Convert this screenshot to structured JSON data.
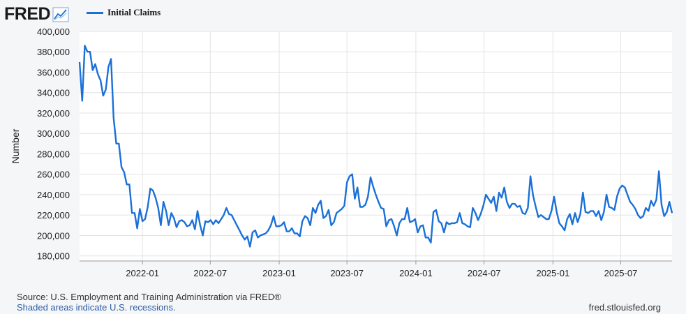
{
  "header": {
    "logo_text": "FRED",
    "logo_icon": "fred-trend-icon"
  },
  "legend": {
    "series_label": "Initial Claims",
    "color": "#1a70d8"
  },
  "footer": {
    "source": "Source: U.S. Employment and Training Administration via FRED®",
    "recession_note": "Shaded areas indicate U.S. recessions.",
    "site": "fred.stlouisfed.org"
  },
  "chart_data": {
    "type": "line",
    "ylabel": "Number",
    "ylim": [
      175000,
      400000
    ],
    "yticks": [
      180000,
      200000,
      220000,
      240000,
      260000,
      280000,
      300000,
      320000,
      340000,
      360000,
      380000,
      400000
    ],
    "ytick_labels": [
      "180,000",
      "200,000",
      "220,000",
      "240,000",
      "260,000",
      "280,000",
      "300,000",
      "320,000",
      "340,000",
      "360,000",
      "380,000",
      "400,000"
    ],
    "xlim": [
      "2021-07-17",
      "2025-11-15"
    ],
    "xticks": [
      "2022-01-01",
      "2022-07-01",
      "2023-01-01",
      "2023-07-01",
      "2024-01-01",
      "2024-07-01",
      "2025-01-01",
      "2025-07-01"
    ],
    "xtick_labels": [
      "2022-01",
      "2022-07",
      "2023-01",
      "2023-07",
      "2024-01",
      "2024-07",
      "2025-01",
      "2025-07"
    ],
    "grid": true,
    "legend_position": "top-left",
    "series": [
      {
        "name": "Initial Claims",
        "color": "#1a70d8",
        "points": [
          [
            "2021-07-17",
            370000
          ],
          [
            "2021-07-24",
            332000
          ],
          [
            "2021-07-31",
            386000
          ],
          [
            "2021-08-07",
            380000
          ],
          [
            "2021-08-14",
            380000
          ],
          [
            "2021-08-21",
            362000
          ],
          [
            "2021-08-28",
            368000
          ],
          [
            "2021-09-04",
            358000
          ],
          [
            "2021-09-11",
            352000
          ],
          [
            "2021-09-18",
            337000
          ],
          [
            "2021-09-25",
            343000
          ],
          [
            "2021-10-02",
            365000
          ],
          [
            "2021-10-09",
            373000
          ],
          [
            "2021-10-16",
            315000
          ],
          [
            "2021-10-23",
            290000
          ],
          [
            "2021-10-30",
            290000
          ],
          [
            "2021-11-06",
            267000
          ],
          [
            "2021-11-13",
            262000
          ],
          [
            "2021-11-20",
            250000
          ],
          [
            "2021-11-27",
            250000
          ],
          [
            "2021-12-04",
            222000
          ],
          [
            "2021-12-11",
            222000
          ],
          [
            "2021-12-18",
            207000
          ],
          [
            "2021-12-25",
            226000
          ],
          [
            "2022-01-01",
            214000
          ],
          [
            "2022-01-08",
            216000
          ],
          [
            "2022-01-15",
            228000
          ],
          [
            "2022-01-22",
            246000
          ],
          [
            "2022-01-29",
            244000
          ],
          [
            "2022-02-05",
            237000
          ],
          [
            "2022-02-12",
            227000
          ],
          [
            "2022-02-19",
            210000
          ],
          [
            "2022-02-26",
            233000
          ],
          [
            "2022-03-05",
            224000
          ],
          [
            "2022-03-12",
            210000
          ],
          [
            "2022-03-19",
            222000
          ],
          [
            "2022-03-26",
            217000
          ],
          [
            "2022-04-02",
            208000
          ],
          [
            "2022-04-09",
            214000
          ],
          [
            "2022-04-16",
            215000
          ],
          [
            "2022-04-23",
            213000
          ],
          [
            "2022-04-30",
            209000
          ],
          [
            "2022-05-07",
            210000
          ],
          [
            "2022-05-14",
            215000
          ],
          [
            "2022-05-21",
            206000
          ],
          [
            "2022-05-28",
            224000
          ],
          [
            "2022-06-04",
            210000
          ],
          [
            "2022-06-11",
            200000
          ],
          [
            "2022-06-18",
            214000
          ],
          [
            "2022-06-25",
            213000
          ],
          [
            "2022-07-02",
            215000
          ],
          [
            "2022-07-09",
            211000
          ],
          [
            "2022-07-16",
            215000
          ],
          [
            "2022-07-23",
            212000
          ],
          [
            "2022-07-30",
            216000
          ],
          [
            "2022-08-06",
            220000
          ],
          [
            "2022-08-13",
            227000
          ],
          [
            "2022-08-20",
            221000
          ],
          [
            "2022-08-27",
            220000
          ],
          [
            "2022-09-03",
            215000
          ],
          [
            "2022-09-10",
            210000
          ],
          [
            "2022-09-17",
            205000
          ],
          [
            "2022-09-24",
            200000
          ],
          [
            "2022-10-01",
            196000
          ],
          [
            "2022-10-08",
            199000
          ],
          [
            "2022-10-15",
            189000
          ],
          [
            "2022-10-22",
            203000
          ],
          [
            "2022-10-29",
            205000
          ],
          [
            "2022-11-05",
            198000
          ],
          [
            "2022-11-12",
            200000
          ],
          [
            "2022-11-19",
            201000
          ],
          [
            "2022-11-26",
            202000
          ],
          [
            "2022-12-03",
            205000
          ],
          [
            "2022-12-10",
            210000
          ],
          [
            "2022-12-17",
            219000
          ],
          [
            "2022-12-24",
            209000
          ],
          [
            "2022-12-31",
            209000
          ],
          [
            "2023-01-07",
            210000
          ],
          [
            "2023-01-14",
            213000
          ],
          [
            "2023-01-21",
            204000
          ],
          [
            "2023-01-28",
            204000
          ],
          [
            "2023-02-04",
            207000
          ],
          [
            "2023-02-11",
            202000
          ],
          [
            "2023-02-18",
            202000
          ],
          [
            "2023-02-25",
            199000
          ],
          [
            "2023-03-04",
            214000
          ],
          [
            "2023-03-11",
            219000
          ],
          [
            "2023-03-18",
            217000
          ],
          [
            "2023-03-25",
            210000
          ],
          [
            "2023-04-01",
            227000
          ],
          [
            "2023-04-08",
            222000
          ],
          [
            "2023-04-15",
            230000
          ],
          [
            "2023-04-22",
            234000
          ],
          [
            "2023-04-29",
            217000
          ],
          [
            "2023-05-06",
            219000
          ],
          [
            "2023-05-13",
            225000
          ],
          [
            "2023-05-20",
            210000
          ],
          [
            "2023-05-27",
            213000
          ],
          [
            "2023-06-03",
            222000
          ],
          [
            "2023-06-10",
            224000
          ],
          [
            "2023-06-17",
            226000
          ],
          [
            "2023-06-24",
            229000
          ],
          [
            "2023-07-01",
            252000
          ],
          [
            "2023-07-08",
            258000
          ],
          [
            "2023-07-15",
            260000
          ],
          [
            "2023-07-22",
            236000
          ],
          [
            "2023-07-29",
            247000
          ],
          [
            "2023-08-05",
            228000
          ],
          [
            "2023-08-12",
            228000
          ],
          [
            "2023-08-19",
            230000
          ],
          [
            "2023-08-26",
            238000
          ],
          [
            "2023-09-02",
            257000
          ],
          [
            "2023-09-09",
            248000
          ],
          [
            "2023-09-16",
            240000
          ],
          [
            "2023-09-23",
            233000
          ],
          [
            "2023-09-30",
            227000
          ],
          [
            "2023-10-07",
            226000
          ],
          [
            "2023-10-14",
            209000
          ],
          [
            "2023-10-21",
            215000
          ],
          [
            "2023-10-28",
            216000
          ],
          [
            "2023-11-04",
            209000
          ],
          [
            "2023-11-11",
            200000
          ],
          [
            "2023-11-18",
            212000
          ],
          [
            "2023-11-25",
            216000
          ],
          [
            "2023-12-02",
            216000
          ],
          [
            "2023-12-09",
            227000
          ],
          [
            "2023-12-16",
            213000
          ],
          [
            "2023-12-23",
            214000
          ],
          [
            "2023-12-30",
            216000
          ],
          [
            "2024-01-06",
            203000
          ],
          [
            "2024-01-13",
            209000
          ],
          [
            "2024-01-20",
            210000
          ],
          [
            "2024-01-27",
            198000
          ],
          [
            "2024-02-03",
            198000
          ],
          [
            "2024-02-10",
            193000
          ],
          [
            "2024-02-17",
            223000
          ],
          [
            "2024-02-24",
            225000
          ],
          [
            "2024-03-02",
            214000
          ],
          [
            "2024-03-09",
            212000
          ],
          [
            "2024-03-16",
            203000
          ],
          [
            "2024-03-23",
            213000
          ],
          [
            "2024-03-30",
            211000
          ],
          [
            "2024-04-06",
            212000
          ],
          [
            "2024-04-13",
            212000
          ],
          [
            "2024-04-20",
            213000
          ],
          [
            "2024-04-27",
            222000
          ],
          [
            "2024-05-04",
            212000
          ],
          [
            "2024-05-11",
            211000
          ],
          [
            "2024-05-18",
            209000
          ],
          [
            "2024-05-25",
            208000
          ],
          [
            "2024-06-01",
            227000
          ],
          [
            "2024-06-08",
            222000
          ],
          [
            "2024-06-15",
            215000
          ],
          [
            "2024-06-22",
            221000
          ],
          [
            "2024-06-29",
            229000
          ],
          [
            "2024-07-06",
            240000
          ],
          [
            "2024-07-13",
            236000
          ],
          [
            "2024-07-20",
            232000
          ],
          [
            "2024-07-27",
            238000
          ],
          [
            "2024-08-03",
            224000
          ],
          [
            "2024-08-10",
            242000
          ],
          [
            "2024-08-17",
            237000
          ],
          [
            "2024-08-24",
            247000
          ],
          [
            "2024-08-31",
            233000
          ],
          [
            "2024-09-07",
            227000
          ],
          [
            "2024-09-14",
            231000
          ],
          [
            "2024-09-21",
            231000
          ],
          [
            "2024-09-28",
            228000
          ],
          [
            "2024-10-05",
            229000
          ],
          [
            "2024-10-12",
            222000
          ],
          [
            "2024-10-19",
            221000
          ],
          [
            "2024-10-26",
            227000
          ],
          [
            "2024-11-02",
            258000
          ],
          [
            "2024-11-09",
            239000
          ],
          [
            "2024-11-16",
            228000
          ],
          [
            "2024-11-23",
            218000
          ],
          [
            "2024-11-30",
            220000
          ],
          [
            "2024-12-07",
            218000
          ],
          [
            "2024-12-14",
            216000
          ],
          [
            "2024-12-21",
            216000
          ],
          [
            "2024-12-28",
            224000
          ],
          [
            "2025-01-04",
            238000
          ],
          [
            "2025-01-11",
            223000
          ],
          [
            "2025-01-18",
            212000
          ],
          [
            "2025-01-25",
            209000
          ],
          [
            "2025-02-01",
            205000
          ],
          [
            "2025-02-08",
            216000
          ],
          [
            "2025-02-15",
            221000
          ],
          [
            "2025-02-22",
            211000
          ],
          [
            "2025-03-01",
            222000
          ],
          [
            "2025-03-08",
            213000
          ],
          [
            "2025-03-15",
            221000
          ],
          [
            "2025-03-22",
            242000
          ],
          [
            "2025-03-29",
            223000
          ],
          [
            "2025-04-05",
            222000
          ],
          [
            "2025-04-12",
            224000
          ],
          [
            "2025-04-19",
            224000
          ],
          [
            "2025-04-26",
            219000
          ],
          [
            "2025-05-03",
            224000
          ],
          [
            "2025-05-10",
            215000
          ],
          [
            "2025-05-17",
            223000
          ],
          [
            "2025-05-24",
            240000
          ],
          [
            "2025-05-31",
            228000
          ],
          [
            "2025-06-07",
            227000
          ],
          [
            "2025-06-14",
            225000
          ],
          [
            "2025-06-21",
            238000
          ],
          [
            "2025-06-28",
            246000
          ],
          [
            "2025-07-05",
            249000
          ],
          [
            "2025-07-12",
            247000
          ],
          [
            "2025-07-19",
            240000
          ],
          [
            "2025-07-26",
            233000
          ],
          [
            "2025-08-02",
            230000
          ],
          [
            "2025-08-09",
            226000
          ],
          [
            "2025-08-16",
            220000
          ],
          [
            "2025-08-23",
            217000
          ],
          [
            "2025-08-30",
            219000
          ],
          [
            "2025-09-06",
            227000
          ],
          [
            "2025-09-13",
            224000
          ],
          [
            "2025-09-20",
            234000
          ],
          [
            "2025-09-27",
            229000
          ],
          [
            "2025-10-04",
            235000
          ],
          [
            "2025-10-11",
            263000
          ],
          [
            "2025-10-18",
            230000
          ],
          [
            "2025-10-25",
            219000
          ],
          [
            "2025-11-01",
            223000
          ],
          [
            "2025-11-08",
            233000
          ],
          [
            "2025-11-15",
            222000
          ]
        ]
      }
    ]
  }
}
